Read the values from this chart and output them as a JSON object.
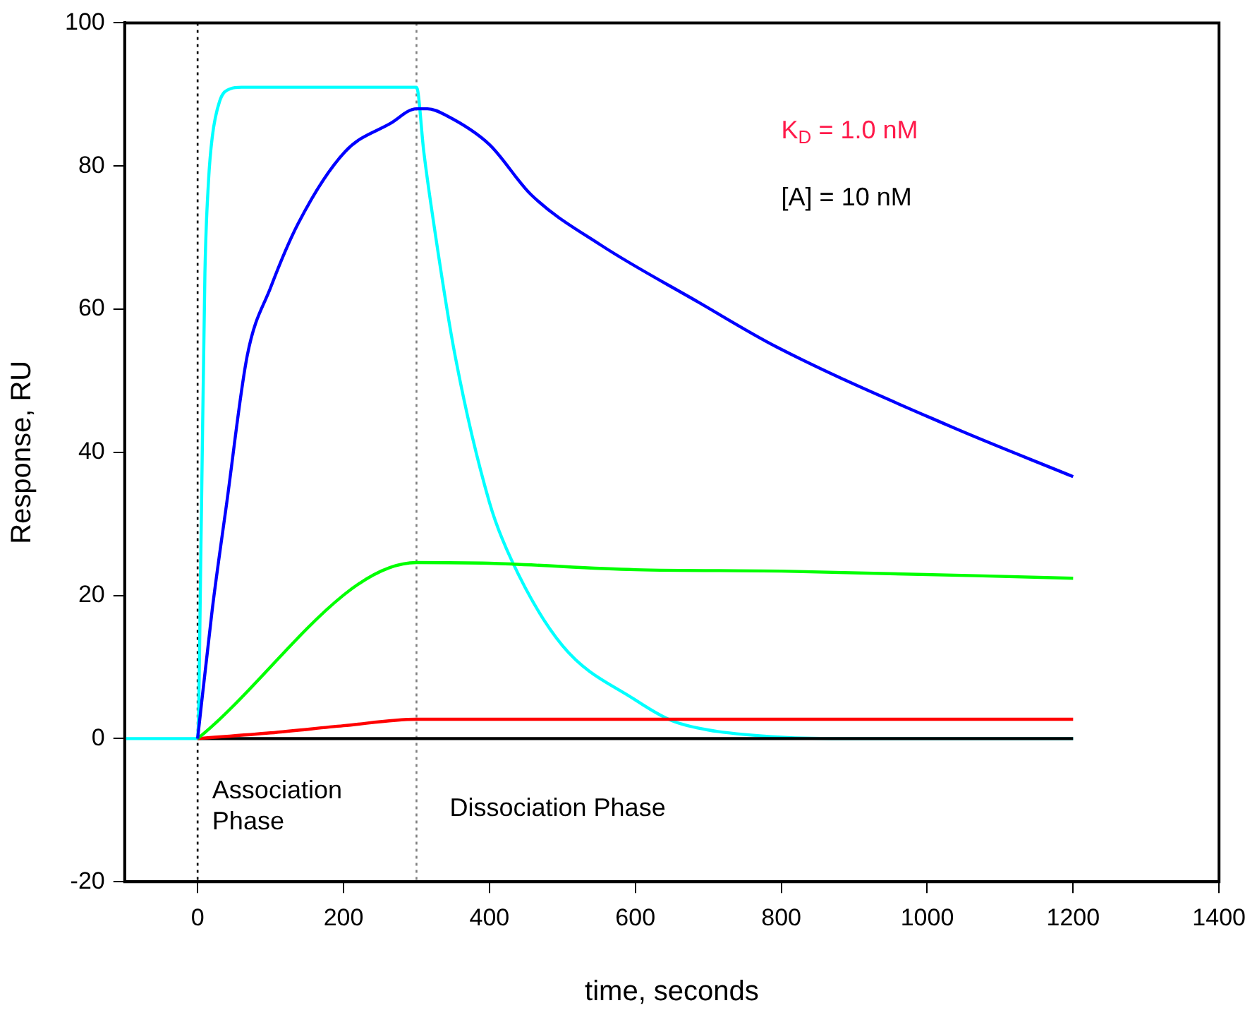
{
  "chart_data": {
    "type": "line",
    "xlabel": "time, seconds",
    "ylabel": "Response, RU",
    "xlim": [
      -100,
      1400
    ],
    "xticks": [
      0,
      200,
      400,
      600,
      800,
      1000,
      1200,
      1400
    ],
    "ylim": [
      -20,
      100
    ],
    "yticks": [
      -20,
      0,
      20,
      40,
      60,
      80,
      100
    ],
    "grid": false,
    "legend": false,
    "marker": "none",
    "line_style": "solid",
    "series": [
      {
        "color": "#0000ff",
        "x": [
          0,
          20,
          40,
          68,
          100,
          138,
          202,
          265,
          300,
          315,
          342,
          400,
          457,
          552,
          686,
          794,
          1030,
          1200
        ],
        "values": [
          0,
          18,
          33,
          53.5,
          63,
          72,
          82,
          86,
          88,
          88,
          87,
          83,
          76,
          69,
          61,
          54.7,
          43.7,
          36.6
        ]
      },
      {
        "color": "#00ff00",
        "x": [
          0,
          300,
          400,
          600,
          800,
          1200
        ],
        "values": [
          0,
          24.6,
          24.5,
          23.6,
          23.4,
          22.4
        ]
      },
      {
        "color": "#ff0000",
        "x": [
          0,
          100,
          200,
          300,
          1200
        ],
        "values": [
          0,
          0.8,
          1.8,
          2.7,
          2.7
        ]
      },
      {
        "color": "#000000",
        "x": [
          0,
          1200
        ],
        "values": [
          0,
          0
        ]
      },
      {
        "color": "#00ffff",
        "x": [
          -100,
          0,
          5,
          10,
          15,
          20,
          30,
          45,
          60,
          300,
          310,
          320,
          352,
          400,
          430,
          500,
          600,
          650,
          700,
          800,
          900,
          1200
        ],
        "values": [
          0,
          0,
          30,
          65,
          78,
          84,
          89,
          90.8,
          91,
          91,
          82,
          74.5,
          54,
          33,
          25,
          13,
          5.4,
          2.5,
          1.2,
          0.2,
          0,
          0
        ]
      }
    ],
    "ref_lines": [
      {
        "axis": "x",
        "value": 0,
        "color": "#000000",
        "line_style": "dotted"
      },
      {
        "axis": "x",
        "value": 300,
        "color": "#808080",
        "line_style": "dotted"
      }
    ],
    "annotations": [
      "K$_{D}$ = 1.0 nM",
      "[A] = 10 nM",
      "Association\nPhase",
      "Dissociation Phase"
    ]
  }
}
